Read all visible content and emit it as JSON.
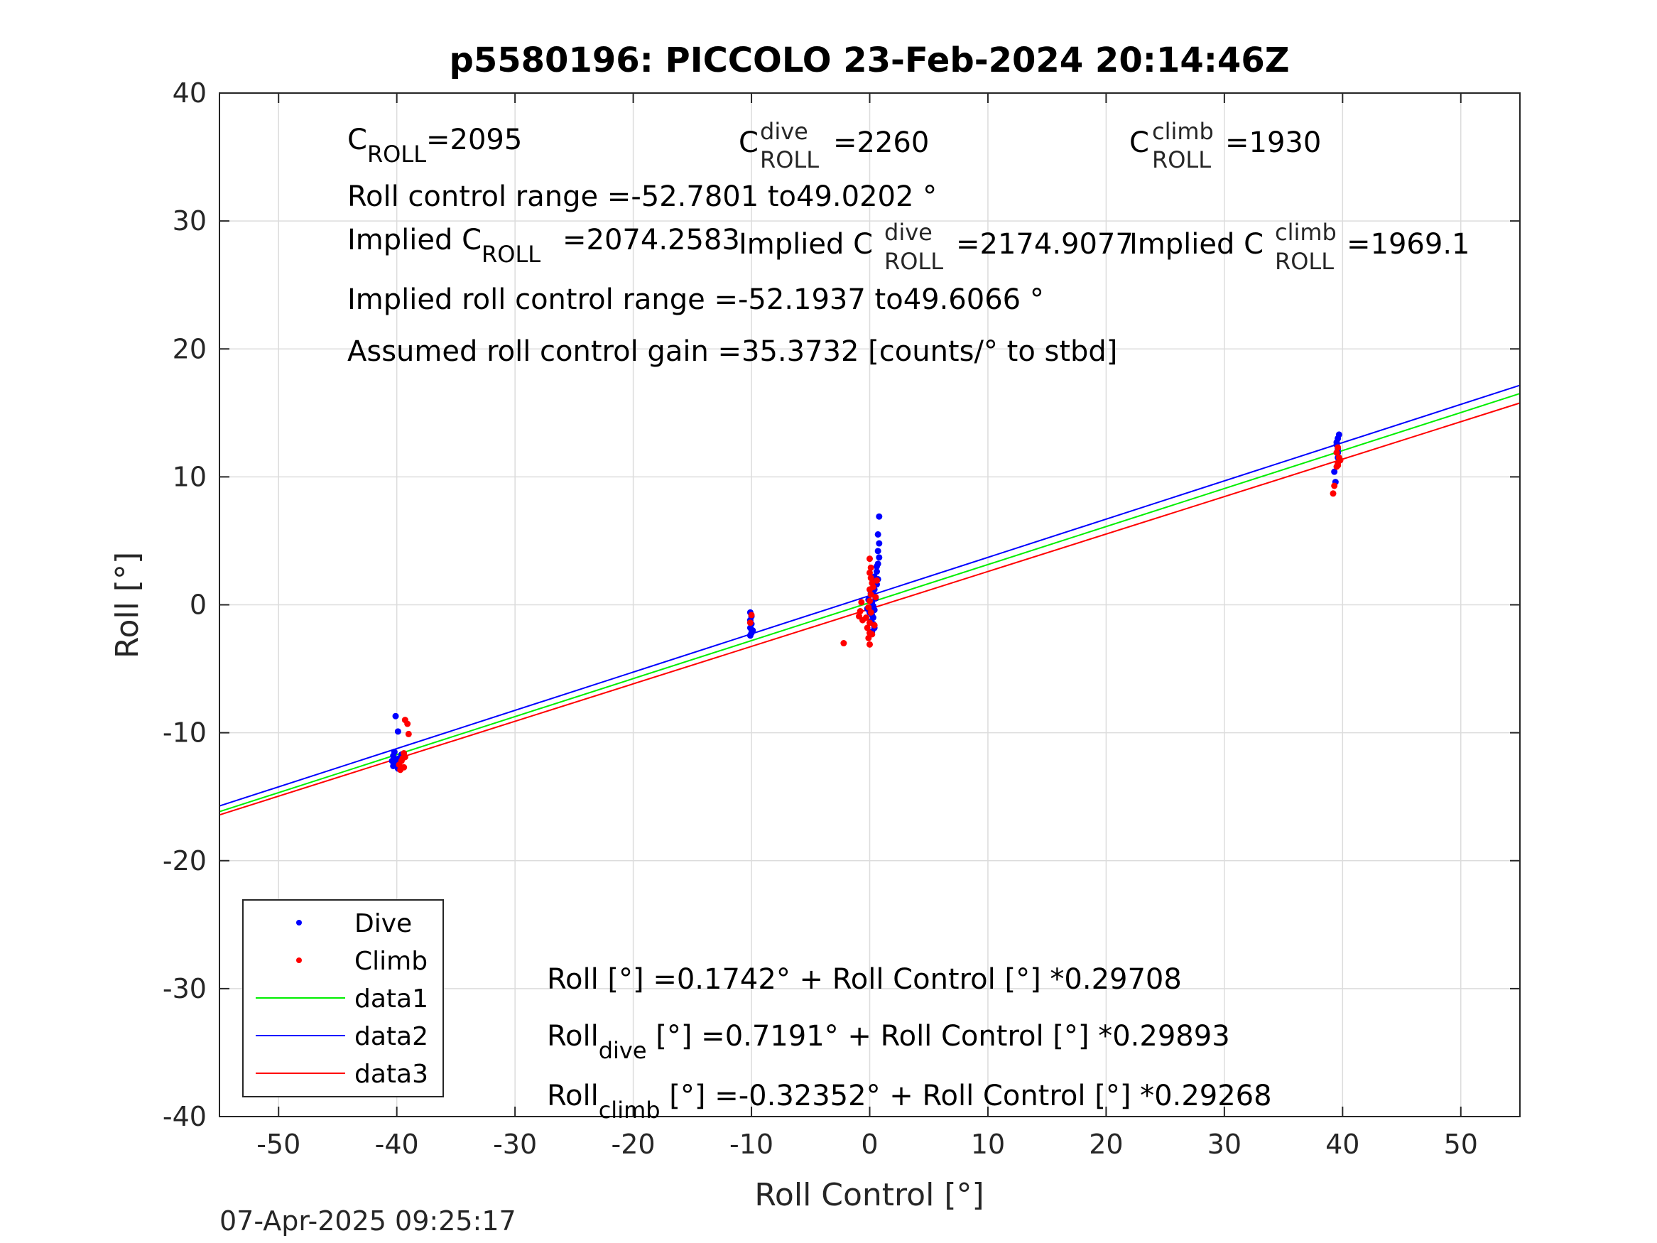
{
  "chart_data": {
    "type": "scatter",
    "title": "p5580196: PICCOLO 23-Feb-2024 20:14:46Z",
    "xlabel": "Roll Control [°]",
    "ylabel": "Roll [°]",
    "xlim": [
      -55,
      55
    ],
    "ylim": [
      -40,
      40
    ],
    "xticks": [
      -50,
      -40,
      -30,
      -20,
      -10,
      0,
      10,
      20,
      30,
      40,
      50
    ],
    "yticks": [
      -40,
      -30,
      -20,
      -10,
      0,
      10,
      20,
      30,
      40
    ],
    "grid": true,
    "legend_position": "bottom-left",
    "series": [
      {
        "name": "Dive",
        "kind": "points",
        "color": "#0000ff",
        "points": [
          [
            -40.1,
            -8.7
          ],
          [
            -39.9,
            -9.9
          ],
          [
            -40.2,
            -11.5
          ],
          [
            -40.3,
            -11.8
          ],
          [
            -40.2,
            -12.0
          ],
          [
            -40.4,
            -12.2
          ],
          [
            -40.0,
            -12.4
          ],
          [
            -40.3,
            -12.6
          ],
          [
            -39.8,
            -12.0
          ],
          [
            -39.6,
            -11.7
          ],
          [
            -39.9,
            -12.8
          ],
          [
            -10.1,
            -0.6
          ],
          [
            -10.0,
            -0.9
          ],
          [
            -10.1,
            -1.2
          ],
          [
            -10.0,
            -1.5
          ],
          [
            -10.1,
            -1.8
          ],
          [
            -9.9,
            -2.0
          ],
          [
            -10.0,
            -2.2
          ],
          [
            -10.1,
            -2.4
          ],
          [
            0.2,
            -2.1
          ],
          [
            0.3,
            -1.5
          ],
          [
            0.3,
            -1.0
          ],
          [
            0.4,
            -0.4
          ],
          [
            0.2,
            0.2
          ],
          [
            0.3,
            0.8
          ],
          [
            0.4,
            1.2
          ],
          [
            0.3,
            1.8
          ],
          [
            0.4,
            2.2
          ],
          [
            0.3,
            -0.1
          ],
          [
            0.2,
            -0.8
          ],
          [
            0.5,
            0.5
          ],
          [
            0.4,
            -1.8
          ],
          [
            0.6,
            1.6
          ],
          [
            0.7,
            2.0
          ],
          [
            0.6,
            2.6
          ],
          [
            0.7,
            3.2
          ],
          [
            0.8,
            3.7
          ],
          [
            0.7,
            4.2
          ],
          [
            0.8,
            4.8
          ],
          [
            0.7,
            5.5
          ],
          [
            0.8,
            6.9
          ],
          [
            0.6,
            3.0
          ],
          [
            -0.2,
            -0.3
          ],
          [
            -0.1,
            0.4
          ],
          [
            0.0,
            -0.6
          ],
          [
            0.1,
            0.9
          ],
          [
            0.1,
            -1.3
          ],
          [
            39.3,
            10.4
          ],
          [
            39.4,
            9.6
          ],
          [
            39.6,
            11.5
          ],
          [
            39.6,
            12.2
          ],
          [
            39.5,
            12.7
          ],
          [
            39.6,
            13.0
          ],
          [
            39.7,
            13.3
          ],
          [
            39.5,
            12.5
          ],
          [
            39.6,
            11.9
          ]
        ]
      },
      {
        "name": "Climb",
        "kind": "points",
        "color": "#ff0000",
        "points": [
          [
            -39.3,
            -9.0
          ],
          [
            -39.1,
            -9.3
          ],
          [
            -39.0,
            -10.1
          ],
          [
            -39.4,
            -11.6
          ],
          [
            -39.5,
            -12.0
          ],
          [
            -39.6,
            -12.2
          ],
          [
            -39.8,
            -12.5
          ],
          [
            -39.4,
            -12.7
          ],
          [
            -39.7,
            -12.9
          ],
          [
            -39.3,
            -11.9
          ],
          [
            -10.0,
            -0.8
          ],
          [
            -10.1,
            -1.4
          ],
          [
            -2.2,
            -3.0
          ],
          [
            0.0,
            -3.1
          ],
          [
            -0.1,
            -2.6
          ],
          [
            0.0,
            -2.2
          ],
          [
            -0.2,
            -1.8
          ],
          [
            0.0,
            -1.4
          ],
          [
            -0.3,
            -1.0
          ],
          [
            0.1,
            -0.6
          ],
          [
            -0.1,
            -0.2
          ],
          [
            0.0,
            0.3
          ],
          [
            0.1,
            0.8
          ],
          [
            0.0,
            1.2
          ],
          [
            0.2,
            1.7
          ],
          [
            0.1,
            2.1
          ],
          [
            0.0,
            2.5
          ],
          [
            0.1,
            2.9
          ],
          [
            0.0,
            3.6
          ],
          [
            0.3,
            1.4
          ],
          [
            0.4,
            -1.6
          ],
          [
            0.5,
            0.6
          ],
          [
            0.6,
            1.9
          ],
          [
            -0.8,
            -0.5
          ],
          [
            -0.7,
            0.2
          ],
          [
            -0.6,
            -1.2
          ],
          [
            -0.9,
            -0.9
          ],
          [
            0.2,
            -2.3
          ],
          [
            39.2,
            8.7
          ],
          [
            39.3,
            9.3
          ],
          [
            39.5,
            10.8
          ],
          [
            39.6,
            11.1
          ],
          [
            39.7,
            11.5
          ],
          [
            39.5,
            11.9
          ],
          [
            39.6,
            12.3
          ],
          [
            39.8,
            11.3
          ],
          [
            39.6,
            10.9
          ]
        ]
      },
      {
        "name": "data1",
        "kind": "line",
        "color": "#00ee00",
        "intercept": 0.1742,
        "slope": 0.29708
      },
      {
        "name": "data2",
        "kind": "line",
        "color": "#0000ff",
        "intercept": 0.7191,
        "slope": 0.29893
      },
      {
        "name": "data3",
        "kind": "line",
        "color": "#ff0000",
        "intercept": -0.32352,
        "slope": 0.29268
      }
    ],
    "annotations": {
      "c_roll": {
        "base": "C",
        "sub": "ROLL",
        "value": "=2095"
      },
      "c_roll_dive": {
        "base": "C",
        "sup": "dive",
        "sub": "ROLL",
        "value": "=2260"
      },
      "c_roll_climb": {
        "base": "C",
        "sup": "climb",
        "sub": "ROLL",
        "value": "=1930"
      },
      "roll_control_range": "Roll control range =-52.7801 to49.0202 °",
      "implied_c_roll": {
        "base": "Implied C",
        "sub": "ROLL",
        "value": "=2074.2583"
      },
      "implied_c_roll_dive": {
        "base": "Implied C",
        "sup": "dive",
        "sub": "ROLL",
        "value": "=2174.9077"
      },
      "implied_c_roll_climb": {
        "base": "Implied C",
        "sup": "climb",
        "sub": "ROLL",
        "value": "=1969.1"
      },
      "implied_roll_control_range": "Implied roll control range =-52.1937 to49.6066 °",
      "assumed_gain": "Assumed roll control gain =35.3732 [counts/° to stbd]",
      "fit_all": "Roll [°] =0.1742° + Roll Control [°] *0.29708",
      "fit_dive": {
        "base": "Roll",
        "sub": "dive",
        "value": " [°] =0.7191° + Roll Control [°] *0.29893"
      },
      "fit_climb": {
        "base": "Roll",
        "sub": "climb",
        "value": " [°] =-0.32352° + Roll Control [°] *0.29268"
      }
    }
  },
  "footer": {
    "timestamp": "07-Apr-2025 09:25:17"
  }
}
